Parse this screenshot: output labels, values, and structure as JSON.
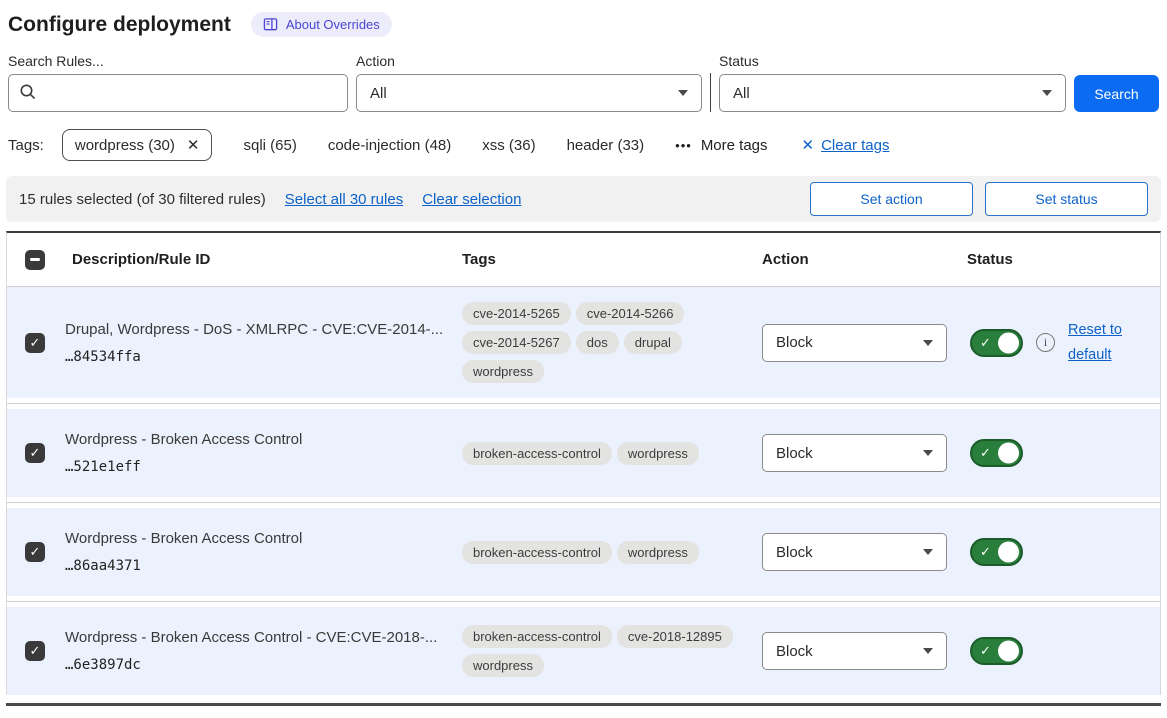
{
  "page": {
    "title": "Configure deployment"
  },
  "about_badge": {
    "label": "About Overrides"
  },
  "filters": {
    "search": {
      "label": "Search Rules...",
      "value": "",
      "placeholder": ""
    },
    "action": {
      "label": "Action",
      "value": "All"
    },
    "status": {
      "label": "Status",
      "value": "All"
    },
    "search_button": "Search"
  },
  "tags_bar": {
    "label": "Tags:",
    "selected_tag": {
      "display": "wordpress (30)"
    },
    "available_tags": [
      "sqli (65)",
      "code-injection (48)",
      "xss (36)",
      "header (33)"
    ],
    "more_tags_label": "More tags",
    "clear_tags_label": "Clear tags"
  },
  "selection_bar": {
    "summary": "15 rules selected (of 30 filtered rules)",
    "select_all_label": "Select all 30 rules",
    "clear_selection_label": "Clear selection",
    "set_action_label": "Set action",
    "set_status_label": "Set status"
  },
  "table": {
    "headers": {
      "description": "Description/Rule ID",
      "tags": "Tags",
      "action": "Action",
      "status": "Status"
    },
    "rows": [
      {
        "description": "Drupal, Wordpress - DoS - XMLRPC - CVE:CVE-2014-...",
        "rule_id": "…84534ffa",
        "tags": [
          "cve-2014-5265",
          "cve-2014-5266",
          "cve-2014-5267",
          "dos",
          "drupal",
          "wordpress"
        ],
        "action": "Block",
        "enabled": true,
        "selected": true,
        "reset_label": "Reset to default"
      },
      {
        "description": "Wordpress - Broken Access Control",
        "rule_id": "…521e1eff",
        "tags": [
          "broken-access-control",
          "wordpress"
        ],
        "action": "Block",
        "enabled": true,
        "selected": true
      },
      {
        "description": "Wordpress - Broken Access Control",
        "rule_id": "…86aa4371",
        "tags": [
          "broken-access-control",
          "wordpress"
        ],
        "action": "Block",
        "enabled": true,
        "selected": true
      },
      {
        "description": "Wordpress - Broken Access Control - CVE:CVE-2018-...",
        "rule_id": "…6e3897dc",
        "tags": [
          "broken-access-control",
          "cve-2018-12895",
          "wordpress"
        ],
        "action": "Block",
        "enabled": true,
        "selected": true
      }
    ]
  },
  "icons": {
    "close": "✕",
    "more_dots": "•••",
    "check": "✓",
    "info": "i"
  },
  "colors": {
    "accent_blue": "#0b6cf3",
    "link_blue": "#0d62c9",
    "toggle_green": "#2a7e3b",
    "badge_purple": "#4b46d2",
    "selected_row_bg": "#ecf2fd",
    "tag_pill_bg": "#e3e3e1",
    "selection_bar_bg": "#f1f1f1"
  }
}
